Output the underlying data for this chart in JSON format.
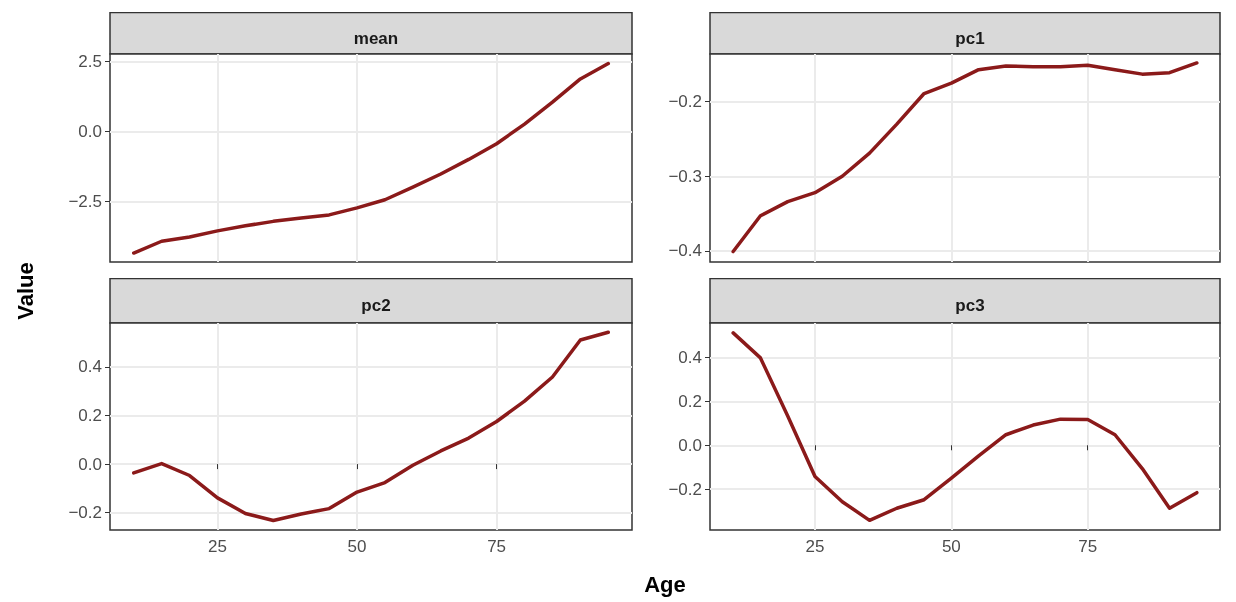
{
  "chart_data": [
    {
      "type": "line",
      "title": "mean",
      "ylabel": "Value",
      "x": [
        10,
        15,
        20,
        25,
        30,
        35,
        40,
        45,
        50,
        55,
        60,
        65,
        70,
        75,
        80,
        85,
        90,
        95
      ],
      "series": [
        {
          "color": "#8b1a1a",
          "values": [
            -4.33,
            -3.91,
            -3.76,
            -3.54,
            -3.36,
            -3.2,
            -3.08,
            -2.97,
            -2.72,
            -2.43,
            -1.98,
            -1.51,
            -0.99,
            -0.43,
            0.27,
            1.05,
            1.88,
            2.43
          ]
        }
      ],
      "xlim": [
        5.75,
        99.25
      ],
      "xticks": [
        25,
        50,
        75
      ],
      "ylim": [
        -4.65,
        2.77
      ],
      "yticks": [
        2.5,
        {
          "value": 0,
          "label": "0.0"
        },
        {
          "value": -2.5,
          "label": "−2.5"
        }
      ],
      "tick_labels": "y",
      "grid": true,
      "line_style": "solid",
      "marker": "none"
    },
    {
      "type": "line",
      "title": "pc1",
      "x": [
        10,
        15,
        20,
        25,
        30,
        35,
        40,
        45,
        50,
        55,
        60,
        65,
        70,
        75,
        80,
        85,
        90,
        95
      ],
      "series": [
        {
          "color": "#8b1a1a",
          "values": [
            -0.401,
            -0.353,
            -0.334,
            -0.322,
            -0.3,
            -0.269,
            -0.23,
            -0.189,
            -0.175,
            -0.157,
            -0.152,
            -0.153,
            -0.153,
            -0.151,
            -0.157,
            -0.163,
            -0.161,
            -0.148
          ]
        }
      ],
      "xlim": [
        5.75,
        99.25
      ],
      "xticks": [
        25,
        50,
        75
      ],
      "ylim": [
        -0.415,
        -0.136
      ],
      "yticks": [
        {
          "value": -0.2,
          "label": "−0.2"
        },
        {
          "value": -0.3,
          "label": "−0.3"
        },
        {
          "value": -0.4,
          "label": "−0.4"
        }
      ],
      "tick_labels": "y",
      "grid": true,
      "line_style": "solid",
      "marker": "none"
    },
    {
      "type": "line",
      "title": "pc2",
      "xlabel": "Age",
      "x": [
        10,
        15,
        20,
        25,
        30,
        35,
        40,
        45,
        50,
        55,
        60,
        65,
        70,
        75,
        80,
        85,
        90,
        95
      ],
      "series": [
        {
          "color": "#8b1a1a",
          "values": [
            -0.036,
            0.002,
            -0.047,
            -0.139,
            -0.203,
            -0.232,
            -0.205,
            -0.183,
            -0.115,
            -0.076,
            -0.005,
            0.054,
            0.107,
            0.175,
            0.259,
            0.358,
            0.51,
            0.542
          ]
        }
      ],
      "xlim": [
        5.75,
        99.25
      ],
      "xticks": [
        25,
        50,
        75
      ],
      "ylim": [
        -0.271,
        0.58
      ],
      "yticks": [
        0.4,
        0.2,
        {
          "value": 0,
          "label": "0.0"
        },
        {
          "value": -0.2,
          "label": "−0.2"
        }
      ],
      "grid": true,
      "line_style": "solid",
      "marker": "none"
    },
    {
      "type": "line",
      "title": "pc3",
      "x": [
        10,
        15,
        20,
        25,
        30,
        35,
        40,
        45,
        50,
        55,
        60,
        65,
        70,
        75,
        80,
        85,
        90,
        95
      ],
      "series": [
        {
          "color": "#8b1a1a",
          "values": [
            0.512,
            0.398,
            0.133,
            -0.142,
            -0.257,
            -0.342,
            -0.287,
            -0.248,
            -0.15,
            -0.048,
            0.048,
            0.092,
            0.119,
            0.117,
            0.048,
            -0.106,
            -0.287,
            -0.216
          ]
        }
      ],
      "xlim": [
        5.75,
        99.25
      ],
      "xticks": [
        25,
        50,
        75
      ],
      "ylim": [
        -0.386,
        0.557
      ],
      "yticks": [
        0.4,
        0.2,
        {
          "value": 0,
          "label": "0.0"
        },
        {
          "value": -0.2,
          "label": "−0.2"
        }
      ],
      "grid": true,
      "line_style": "solid",
      "marker": "none"
    }
  ]
}
